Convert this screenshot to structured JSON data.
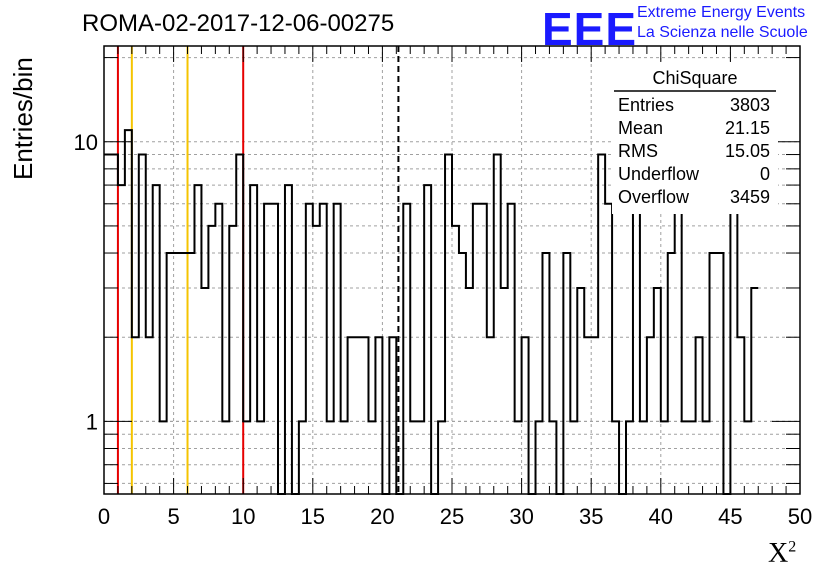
{
  "chart_data": {
    "type": "bar",
    "title": "ROMA-02-2017-12-06-00275",
    "xlabel": "Χ",
    "xlabel_sup": "2",
    "ylabel": "Entries/bin",
    "xlim": [
      0,
      50
    ],
    "ylim": [
      0.55,
      22
    ],
    "y_scale": "log",
    "grid": true,
    "bin_width": 0.5,
    "x_ticks": [
      "0",
      "5",
      "10",
      "15",
      "20",
      "25",
      "30",
      "35",
      "40",
      "45",
      "50"
    ],
    "y_ticks": [
      "1",
      "10"
    ],
    "values": [
      9,
      9,
      7,
      11,
      2,
      9,
      2,
      7,
      1,
      4,
      4,
      4,
      4,
      7,
      3,
      5,
      6,
      1,
      5,
      9,
      1,
      7,
      1,
      6,
      6,
      0,
      7,
      0,
      1,
      6,
      5,
      6,
      1,
      6,
      1,
      2,
      2,
      2,
      1,
      2,
      0,
      2,
      0,
      6,
      1,
      1,
      7,
      0,
      1,
      9,
      5,
      4,
      3,
      6,
      6,
      2,
      9,
      3,
      6,
      1,
      2,
      0,
      1,
      4,
      1,
      0,
      4,
      1,
      3,
      2,
      2,
      9,
      6,
      1,
      0,
      1,
      7,
      1,
      2,
      3,
      1,
      4,
      9,
      1,
      1,
      2,
      1,
      4,
      4,
      0,
      6,
      2,
      1,
      3
    ],
    "vertical_lines": [
      {
        "x": 1,
        "color": "#e60000",
        "style": "solid"
      },
      {
        "x": 2,
        "color": "#f5c400",
        "style": "solid"
      },
      {
        "x": 6,
        "color": "#f5c400",
        "style": "solid"
      },
      {
        "x": 10,
        "color": "#e60000",
        "style": "solid"
      },
      {
        "x": 21.15,
        "color": "#000000",
        "style": "dashed"
      }
    ],
    "stats_box": {
      "title": "ChiSquare",
      "rows": [
        {
          "label": "Entries",
          "value": "3803"
        },
        {
          "label": "Mean",
          "value": "21.15"
        },
        {
          "label": "RMS",
          "value": "15.05"
        },
        {
          "label": "Underflow",
          "value": "0"
        },
        {
          "label": "Overflow",
          "value": "3459"
        }
      ]
    }
  },
  "logo": {
    "mark": "EEE",
    "line1": "Extreme Energy Events",
    "line2": "La Scienza nelle Scuole",
    "color": "#1a1aff"
  }
}
